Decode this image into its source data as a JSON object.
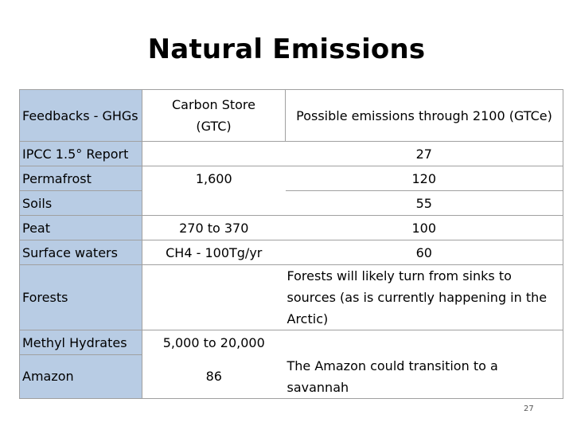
{
  "title": "Natural Emissions",
  "table": {
    "headers": [
      "Feedbacks - GHGs",
      "Carbon Store (GTC)",
      "Possible emissions through 2100 (GTCe)"
    ],
    "header_line2": [
      "",
      "(GTC)",
      ""
    ],
    "header_line1": [
      "Feedbacks - GHGs",
      "Carbon Store",
      "Possible emissions through 2100 (GTCe)"
    ],
    "rows": [
      {
        "feedback": "IPCC 1.5° Report",
        "store": "",
        "emissions": "27"
      },
      {
        "feedback": "Permafrost",
        "store": "1,600",
        "emissions": "120"
      },
      {
        "feedback": "Soils",
        "store": "",
        "emissions": "55"
      },
      {
        "feedback": "Peat",
        "store": "270 to 370",
        "emissions": "100"
      },
      {
        "feedback": "Surface waters",
        "store": "CH4 - 100Tg/yr",
        "emissions": "60"
      },
      {
        "feedback": "Forests",
        "store": "",
        "emissions": "Forests will likely turn from sinks to sources (as is currently happening in the Arctic)"
      },
      {
        "feedback": "Methyl Hydrates",
        "store": "5,000 to 20,000",
        "emissions": ""
      },
      {
        "feedback": "Amazon",
        "store": "86",
        "emissions": "The Amazon could transition to a savannah"
      }
    ]
  },
  "page_number": "27",
  "colors": {
    "label_column": "#b8cce4",
    "border": "#a0a0a0"
  }
}
